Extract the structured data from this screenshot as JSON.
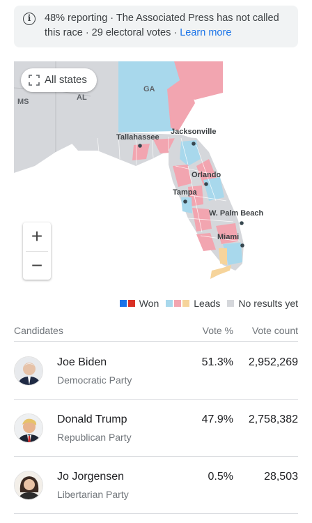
{
  "banner": {
    "icon": "info-icon",
    "text": "48% reporting · The Associated Press has not called this race · 29 electoral votes · ",
    "link": "Learn more"
  },
  "map": {
    "all_states_label": "All states",
    "state_labels": {
      "ga": "GA",
      "al": "AL",
      "ms": "MS"
    },
    "cities": [
      "Tallahassee",
      "Jacksonville",
      "Orlando",
      "Tampa",
      "W. Palm Beach",
      "Miami"
    ],
    "zoom_in": "+",
    "zoom_out": "−",
    "colors": {
      "land_gray": "#d5d7db",
      "outline_gray": "#c9cbcf",
      "leads_blue": "#a8d8ec",
      "leads_red": "#f2a5b0",
      "leads_other": "#f6d49b",
      "won_blue": "#1a73e8",
      "won_red": "#d93025"
    }
  },
  "legend": {
    "won": "Won",
    "leads": "Leads",
    "no_results": "No results yet"
  },
  "table": {
    "headers": {
      "candidates": "Candidates",
      "vote_pct": "Vote %",
      "vote_count": "Vote count"
    },
    "rows": [
      {
        "name": "Joe Biden",
        "party": "Democratic Party",
        "pct": "51.3%",
        "count": "2,952,269"
      },
      {
        "name": "Donald Trump",
        "party": "Republican Party",
        "pct": "47.9%",
        "count": "2,758,382"
      },
      {
        "name": "Jo Jorgensen",
        "party": "Libertarian Party",
        "pct": "0.5%",
        "count": "28,503"
      }
    ]
  }
}
